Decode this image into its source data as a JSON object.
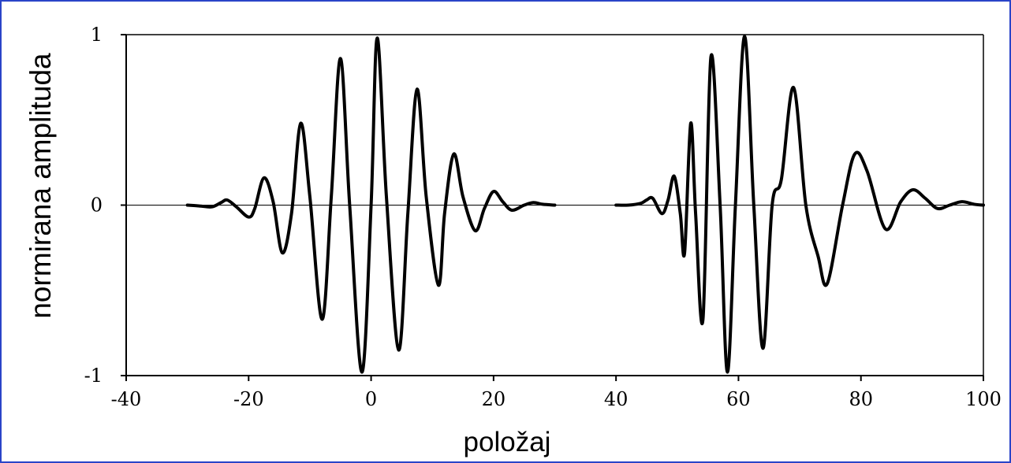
{
  "chart_data": {
    "type": "line",
    "title": "",
    "xlabel": "položaj",
    "ylabel": "normirana amplituda",
    "xlim": [
      -40,
      100
    ],
    "ylim": [
      -1,
      1
    ],
    "x_ticks": [
      "-40",
      "-20",
      "0",
      "20",
      "40",
      "60",
      "80",
      "100"
    ],
    "y_ticks": [
      "-1",
      "0",
      "1"
    ],
    "x_tick_values": [
      -40,
      -20,
      0,
      20,
      40,
      60,
      80,
      100
    ],
    "y_tick_values": [
      -1,
      0,
      1
    ],
    "grid": false,
    "legend": "none",
    "line_color": "#000000",
    "series": [
      {
        "x": [
          -30,
          -28,
          -26,
          -24.5,
          -23.5,
          -22,
          -20,
          -19,
          -17.5,
          -16,
          -14.5,
          -13,
          -11.5,
          -10,
          -8,
          -6.5,
          -5,
          -3.5,
          -1.5,
          0,
          1,
          2.5,
          4.5,
          6,
          7.5,
          9,
          11,
          12,
          13.5,
          15,
          17,
          18.5,
          20,
          21.5,
          23,
          25,
          26.5,
          28,
          30
        ],
        "y": [
          0,
          -0.005,
          -0.01,
          0.015,
          0.03,
          -0.01,
          -0.07,
          -0.02,
          0.16,
          0.02,
          -0.28,
          -0.05,
          0.48,
          0.05,
          -0.67,
          0.05,
          0.86,
          0,
          -0.98,
          0,
          0.98,
          0.05,
          -0.85,
          -0.05,
          0.68,
          0.05,
          -0.47,
          -0.05,
          0.3,
          0.05,
          -0.15,
          -0.02,
          0.08,
          0.02,
          -0.03,
          0,
          0.015,
          0.005,
          0
        ]
      },
      {
        "x": [
          40,
          42,
          44,
          45,
          46,
          47.5,
          48.5,
          49.5,
          50.5,
          51.2,
          52.2,
          53,
          54.2,
          55.5,
          57,
          58.2,
          59.5,
          61,
          62.5,
          64,
          65.5,
          67,
          69,
          71,
          73,
          74.5,
          77,
          79,
          81,
          84,
          86.5,
          88.5,
          90.5,
          92.5,
          94.5,
          96.5,
          98.5,
          100
        ],
        "y": [
          0,
          0,
          0.01,
          0.03,
          0.04,
          -0.05,
          0.03,
          0.17,
          -0.05,
          -0.28,
          0.48,
          -0.05,
          -0.67,
          0.87,
          0,
          -0.98,
          0,
          0.99,
          0,
          -0.84,
          0,
          0.15,
          0.69,
          0,
          -0.3,
          -0.46,
          0,
          0.3,
          0.2,
          -0.14,
          0.02,
          0.09,
          0.04,
          -0.02,
          0.0,
          0.02,
          0.005,
          0
        ]
      }
    ]
  }
}
